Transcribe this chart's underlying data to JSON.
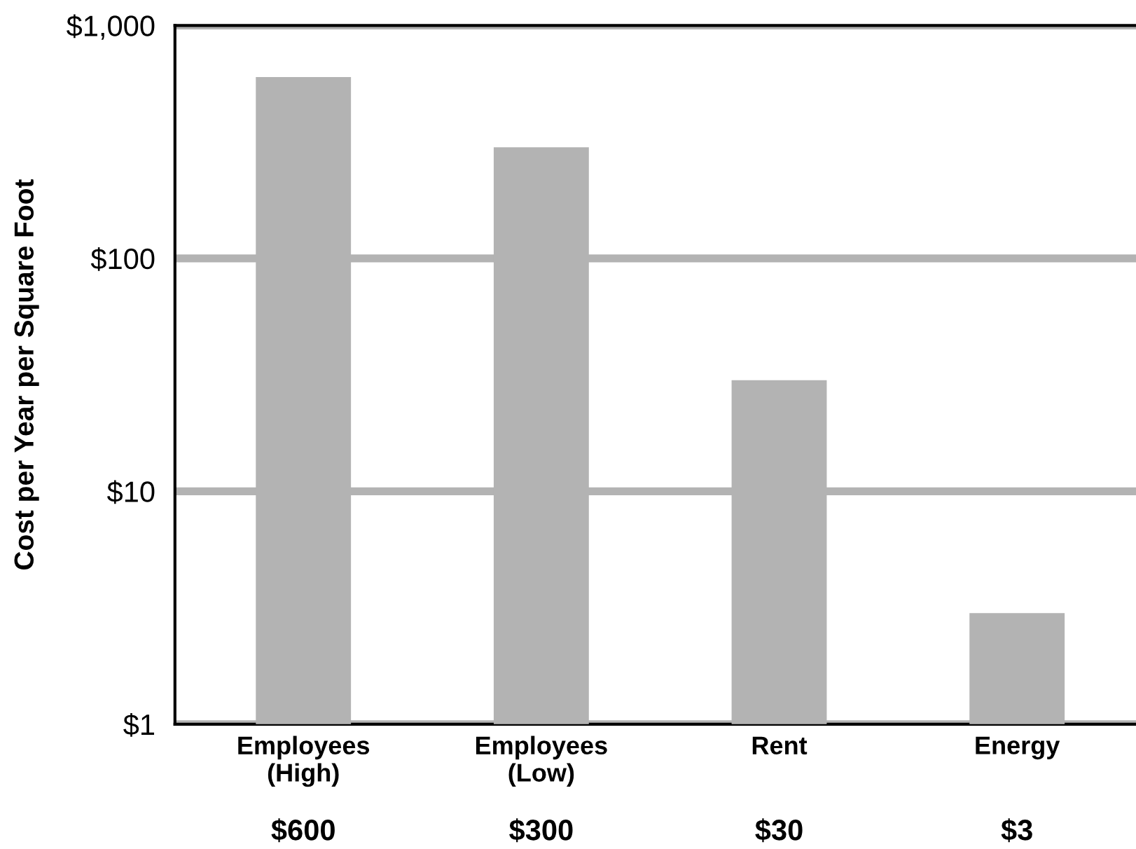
{
  "chart_data": {
    "type": "bar",
    "ylabel": "Cost per Year per Square Foot",
    "categories": [
      "Employees\n(High)",
      "Employees\n(Low)",
      "Rent",
      "Energy"
    ],
    "values": [
      600,
      300,
      30,
      3
    ],
    "value_labels": [
      "$600",
      "$300",
      "$30",
      "$3"
    ],
    "color": "#b3b3b3",
    "log": true,
    "ylim": [
      1,
      1000
    ],
    "yticks": [
      {
        "value": 1,
        "label": "$1"
      },
      {
        "value": 10,
        "label": "$10"
      },
      {
        "value": 100,
        "label": "$100"
      },
      {
        "value": 1000,
        "label": "$1,000"
      }
    ],
    "grid": "y"
  }
}
